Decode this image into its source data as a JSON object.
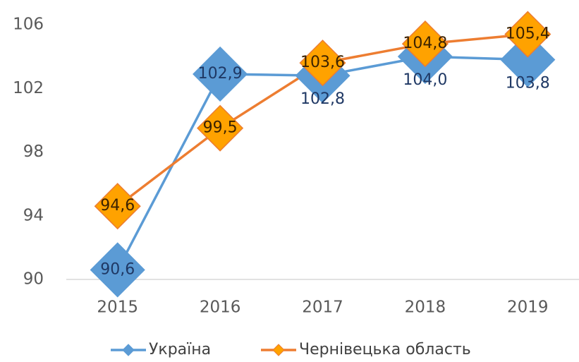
{
  "chart_data": {
    "type": "line",
    "categories": [
      "2015",
      "2016",
      "2017",
      "2018",
      "2019"
    ],
    "series": [
      {
        "name": "Україна",
        "color": "#5b9bd5",
        "values": [
          90.6,
          102.9,
          102.8,
          104.0,
          103.8
        ],
        "value_labels": [
          "90,6",
          "102,9",
          "102,8",
          "104,0",
          "103,8"
        ]
      },
      {
        "name": "Чернівецька область",
        "color": "#ed7d31",
        "values": [
          94.6,
          99.5,
          103.6,
          104.8,
          105.4
        ],
        "value_labels": [
          "94,6",
          "99,5",
          "103,6",
          "104,8",
          "105,4"
        ]
      }
    ],
    "ylim": [
      90,
      106
    ],
    "yticks": [
      90,
      94,
      98,
      102,
      106
    ],
    "grid": false,
    "legend": "bottom"
  }
}
